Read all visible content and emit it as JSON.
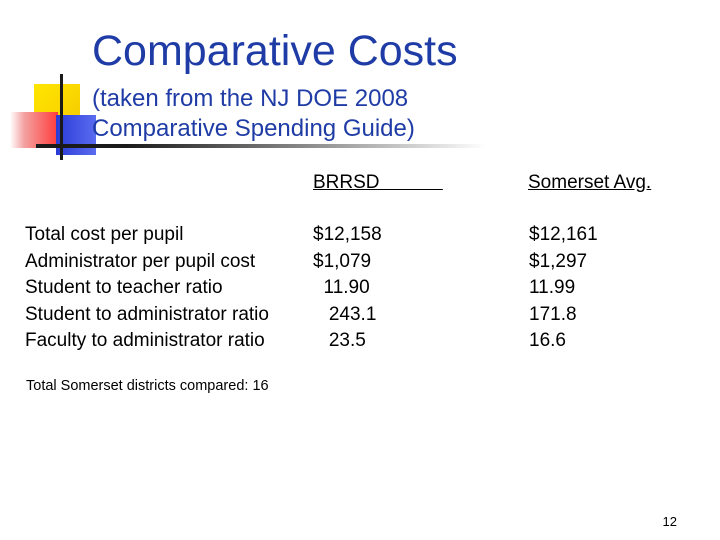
{
  "slide": {
    "title": "Comparative Costs",
    "subtitle_lines": [
      "(taken from the NJ DOE 2008",
      "Comparative Spending Guide)"
    ],
    "columns": [
      "BRRSD            ",
      "Somerset Avg."
    ],
    "rows": [
      {
        "label": "Total cost per pupil",
        "brrsd": "$12,158",
        "somerset": "$12,161"
      },
      {
        "label": "Administrator per pupil cost",
        "brrsd": "$1,079",
        "somerset": "$1,297"
      },
      {
        "label": "Student to teacher ratio",
        "brrsd": "  11.90",
        "somerset": "11.99"
      },
      {
        "label": "Student to administrator ratio",
        "brrsd": "   243.1",
        "somerset": "171.8"
      },
      {
        "label": "Faculty to administrator ratio",
        "brrsd": "   23.5",
        "somerset": "16.6"
      }
    ],
    "footnote": "Total Somerset districts compared: 16",
    "page_number": "12"
  }
}
